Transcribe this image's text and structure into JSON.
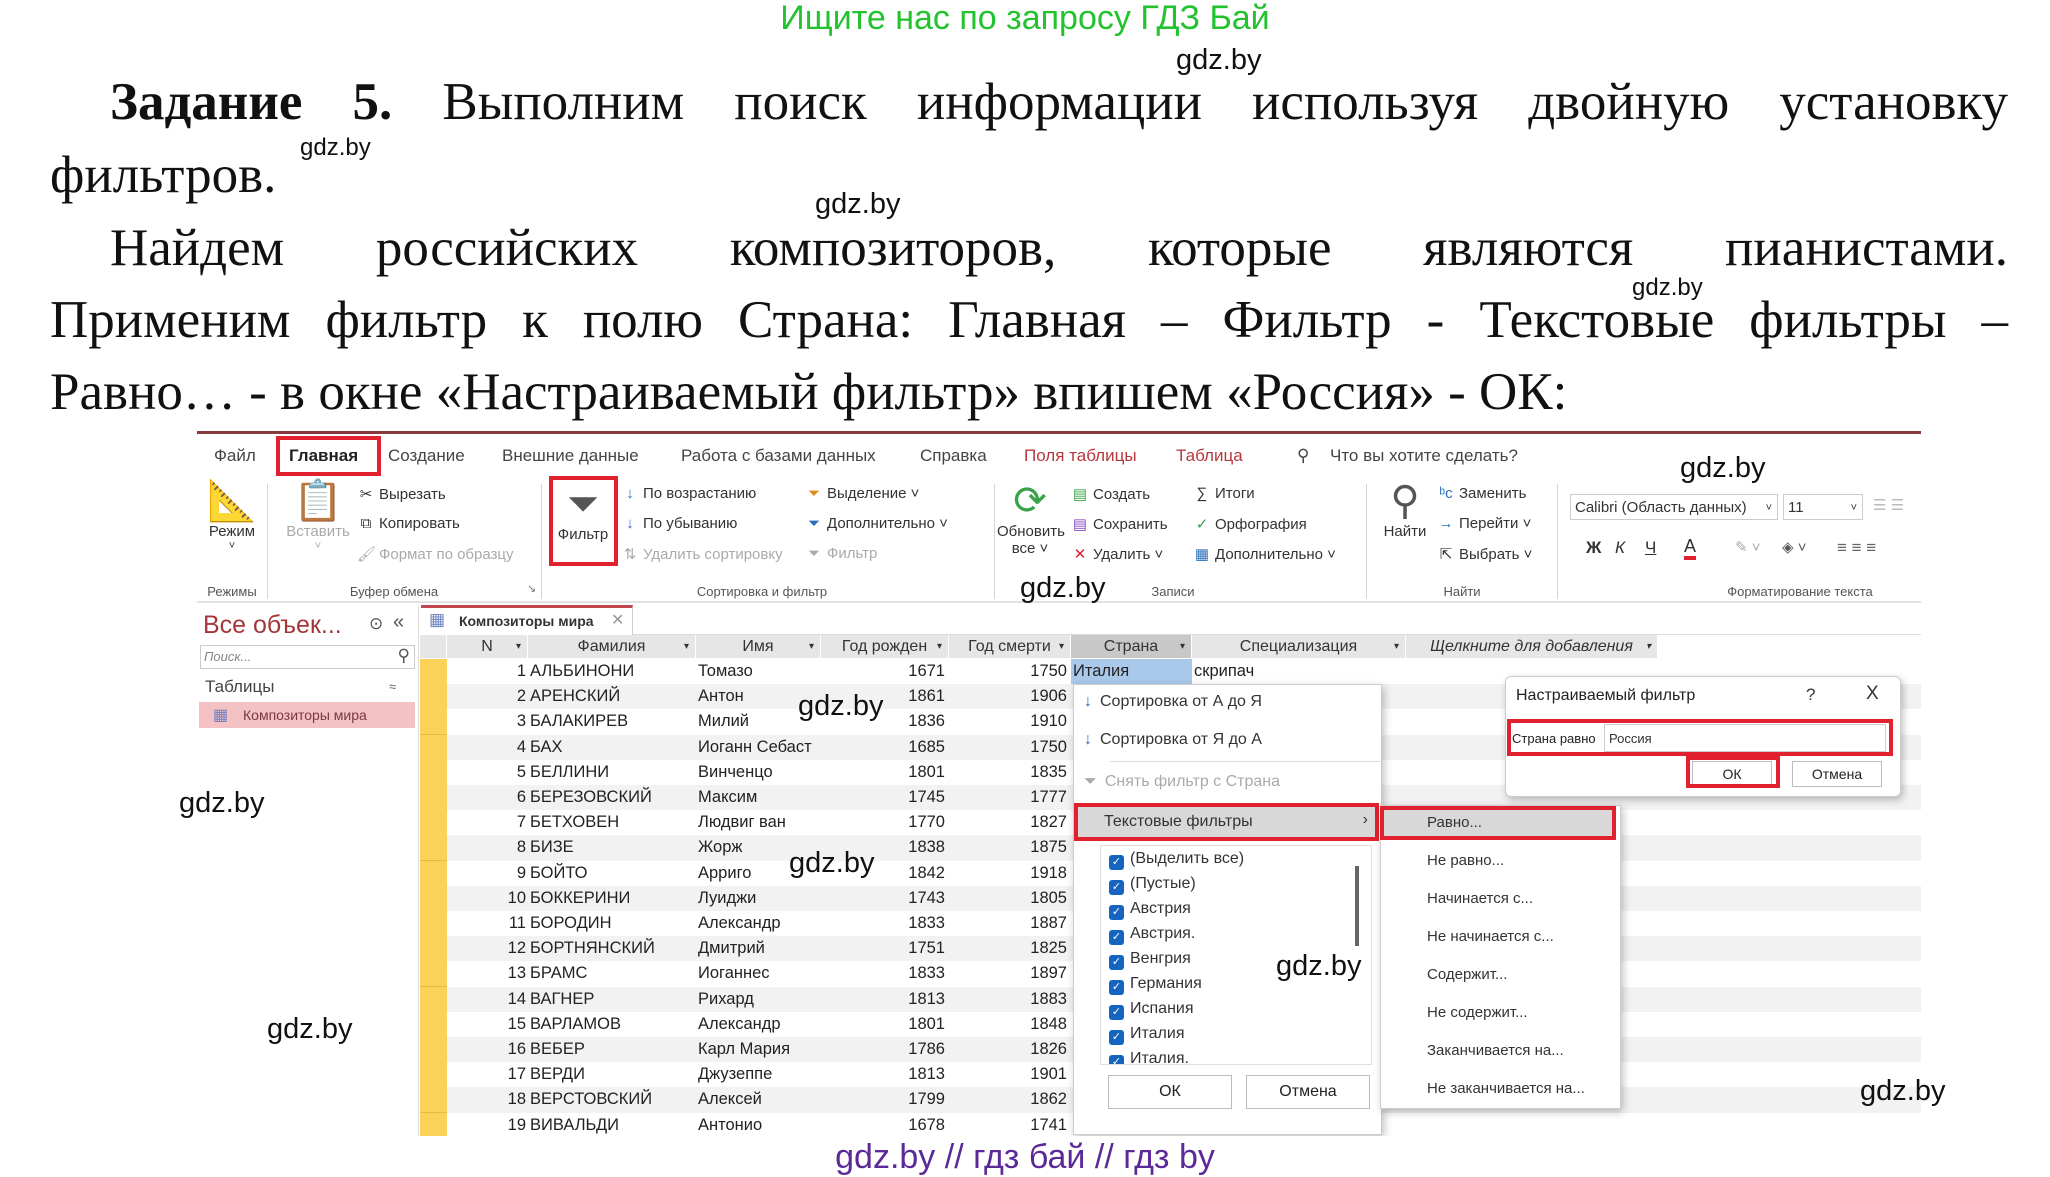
{
  "promo": "Ищите нас по запросу ГДЗ Бай",
  "paragraph": {
    "task_label": "Задание 5.",
    "line1_rest": "Выполним поиск информации используя двойную установку",
    "line2": "фильтров.",
    "line3": "Найдем российских композиторов, которые являются пианистами.",
    "line4": "Применим фильтр к полю Страна: Главная – Фильтр - Текстовые фильтры –",
    "line5": "Равно… - в окне «Настраиваемый фильтр» впишем «Россия» - ОК:"
  },
  "watermark": "gdz.by",
  "footer": "gdz.by  //  гдз бай  //  гдз by",
  "app": {
    "tabs": [
      "Файл",
      "Главная",
      "Создание",
      "Внешние данные",
      "Работа с базами данных",
      "Справка",
      "Поля таблицы",
      "Таблица"
    ],
    "tell_me": "Что вы хотите сделать?",
    "ribbon": {
      "mode": "Режим",
      "paste": "Вставить",
      "cut": "Вырезать",
      "copy": "Копировать",
      "format_painter": "Формат по образцу",
      "filter": "Фильтр",
      "ascending": "По возрастанию",
      "descending": "По убыванию",
      "remove_sort": "Удалить сортировку",
      "selection": "Выделение",
      "advanced": "Дополнительно",
      "toggle_filter": "Фильтр",
      "refresh": "Обновить",
      "refresh_all": "все",
      "new": "Создать",
      "save": "Сохранить",
      "delete": "Удалить",
      "totals": "Итоги",
      "spelling": "Орфография",
      "more": "Дополнительно",
      "find": "Найти",
      "replace": "Заменить",
      "goto": "Перейти",
      "select": "Выбрать",
      "font": "Calibri (Область данных)",
      "font_size": "11",
      "bold": "Ж",
      "italic": "К",
      "underline": "Ч",
      "font_color": "A",
      "groups": [
        "Режимы",
        "Буфер обмена",
        "Сортировка и фильтр",
        "Записи",
        "Найти",
        "Форматирование текста"
      ]
    },
    "nav": {
      "title": "Все объек...",
      "search_placeholder": "Поиск...",
      "section": "Таблицы",
      "item": "Композиторы мира"
    },
    "doc_tab": "Композиторы мира",
    "columns": [
      "N",
      "Фамилия",
      "Имя",
      "Год рожден",
      "Год смерти",
      "Страна",
      "Специализация",
      "Щелкните для добавления"
    ],
    "rows": [
      [
        "1",
        "АЛЬБИНОНИ",
        "Томазо",
        "1671",
        "1750",
        "Италия",
        "скрипач"
      ],
      [
        "2",
        "АРЕНСКИЙ",
        "Антон",
        "1861",
        "1906"
      ],
      [
        "3",
        "БАЛАКИРЕВ",
        "Милий",
        "1836",
        "1910"
      ],
      [
        "4",
        "БАХ",
        "Иоганн Себаст",
        "1685",
        "1750"
      ],
      [
        "5",
        "БЕЛЛИНИ",
        "Винченцо",
        "1801",
        "1835"
      ],
      [
        "6",
        "БЕРЕЗОВСКИЙ",
        "Максим",
        "1745",
        "1777"
      ],
      [
        "7",
        "БЕТХОВЕН",
        "Людвиг ван",
        "1770",
        "1827"
      ],
      [
        "8",
        "БИЗЕ",
        "Жорж",
        "1838",
        "1875"
      ],
      [
        "9",
        "БОЙТО",
        "Арриго",
        "1842",
        "1918"
      ],
      [
        "10",
        "БОККЕРИНИ",
        "Луиджи",
        "1743",
        "1805"
      ],
      [
        "11",
        "БОРОДИН",
        "Александр",
        "1833",
        "1887"
      ],
      [
        "12",
        "БОРТНЯНСКИЙ",
        "Дмитрий",
        "1751",
        "1825"
      ],
      [
        "13",
        "БРАМС",
        "Иоганнес",
        "1833",
        "1897"
      ],
      [
        "14",
        "ВАГНЕР",
        "Рихард",
        "1813",
        "1883"
      ],
      [
        "15",
        "ВАРЛАМОВ",
        "Александр",
        "1801",
        "1848"
      ],
      [
        "16",
        "ВЕБЕР",
        "Карл Мария",
        "1786",
        "1826"
      ],
      [
        "17",
        "ВЕРДИ",
        "Джузеппе",
        "1813",
        "1901"
      ],
      [
        "18",
        "ВЕРСТОВСКИЙ",
        "Алексей",
        "1799",
        "1862"
      ],
      [
        "19",
        "ВИВАЛЬДИ",
        "Антонио",
        "1678",
        "1741"
      ]
    ],
    "filter_menu": {
      "sort_asc": "Сортировка от А до Я",
      "sort_desc": "Сортировка от Я до А",
      "clear": "Снять фильтр с Страна",
      "text_filters": "Текстовые фильтры",
      "values": [
        "(Выделить все)",
        "(Пустые)",
        "Австрия",
        "Австрия.",
        "Венгрия",
        "Германия",
        "Испания",
        "Италия",
        "Италия."
      ],
      "ok": "ОК",
      "cancel": "Отмена"
    },
    "text_filters_submenu": [
      "Равно...",
      "Не равно...",
      "Начинается с...",
      "Не начинается с...",
      "Содержит...",
      "Не содержит...",
      "Заканчивается на...",
      "Не заканчивается на..."
    ],
    "custom_filter": {
      "title": "Настраиваемый фильтр",
      "help": "?",
      "close": "X",
      "label": "Страна равно",
      "value": "Россия",
      "ok": "ОК",
      "cancel": "Отмена"
    }
  },
  "colors": {
    "highlight_red": "#e1212d",
    "promo_green": "#22c32e",
    "footer_purple": "#5b2a98",
    "access_accent": "#a4373a"
  }
}
